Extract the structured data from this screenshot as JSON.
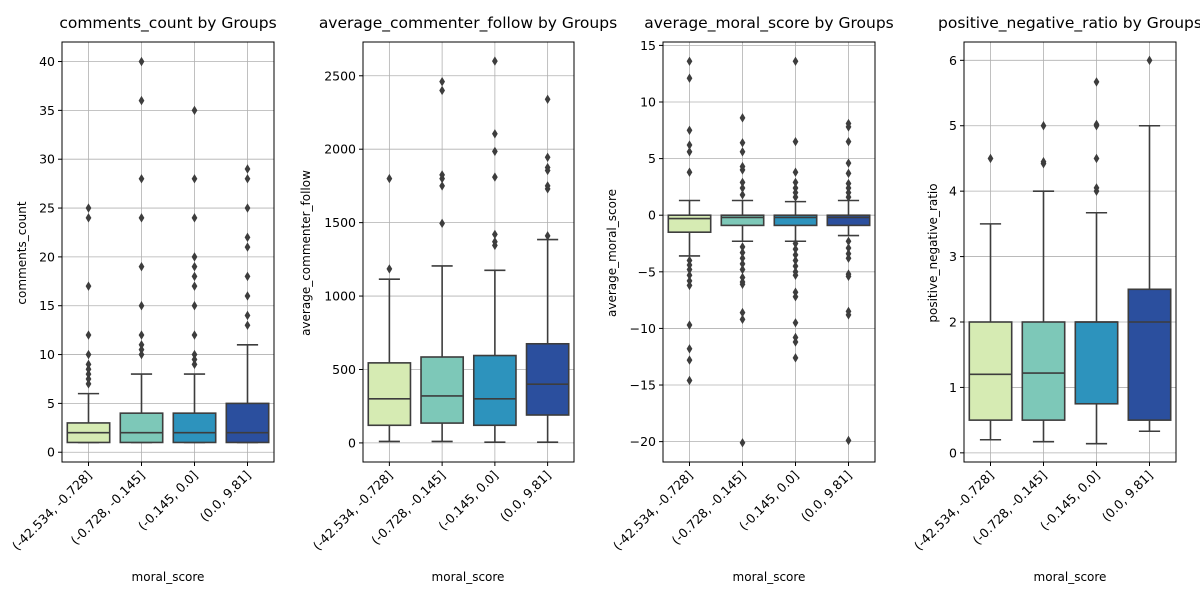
{
  "colors": {
    "groups": [
      "#d6ebb3",
      "#7dc8b8",
      "#2d93bd",
      "#2b4f9e"
    ],
    "line": "#3d3d3d",
    "grid": "#b0b0b0"
  },
  "chart_data": [
    {
      "type": "box",
      "title": "comments_count by Groups",
      "xlabel": "moral_score",
      "ylabel": "comments_count",
      "categories": [
        "(-42.534, -0.728]",
        "(-0.728, -0.145]",
        "(-0.145, 0.0]",
        "(0.0, 9.81]"
      ],
      "ylim": [
        -1,
        42
      ],
      "yticks": [
        0,
        5,
        10,
        15,
        20,
        25,
        30,
        35,
        40
      ],
      "ytick_labels": [
        "0",
        "5",
        "10",
        "15",
        "20",
        "25",
        "30",
        "35",
        "40"
      ],
      "grid": true,
      "boxes": [
        {
          "whisker_low": 1,
          "q1": 1,
          "median": 2,
          "q3": 3,
          "whisker_high": 6,
          "outliers": [
            7,
            7.5,
            8,
            8.5,
            9,
            10,
            12,
            17,
            24,
            25
          ]
        },
        {
          "whisker_low": 1,
          "q1": 1,
          "median": 2,
          "q3": 4,
          "whisker_high": 8,
          "outliers": [
            10,
            10.5,
            11,
            12,
            15,
            19,
            24,
            28,
            36,
            40
          ]
        },
        {
          "whisker_low": 1,
          "q1": 1,
          "median": 2,
          "q3": 4,
          "whisker_high": 8,
          "outliers": [
            9,
            9.5,
            10,
            12,
            15,
            17,
            18,
            19,
            20,
            24,
            28,
            35
          ]
        },
        {
          "whisker_low": 1,
          "q1": 1,
          "median": 2,
          "q3": 5,
          "whisker_high": 11,
          "outliers": [
            13,
            14,
            16,
            18,
            21,
            22,
            25,
            28,
            29
          ]
        }
      ]
    },
    {
      "type": "box",
      "title": "average_commenter_follow by Groups",
      "xlabel": "moral_score",
      "ylabel": "average_commenter_follow",
      "categories": [
        "(-42.534, -0.728]",
        "(-0.728, -0.145]",
        "(-0.145, 0.0]",
        "(0.0, 9.81]"
      ],
      "ylim": [
        -130,
        2730
      ],
      "yticks": [
        0,
        500,
        1000,
        1500,
        2000,
        2500
      ],
      "ytick_labels": [
        "0",
        "500",
        "1000",
        "1500",
        "2000",
        "2500"
      ],
      "grid": true,
      "boxes": [
        {
          "whisker_low": 10,
          "q1": 120,
          "median": 300,
          "q3": 545,
          "whisker_high": 1115,
          "outliers": [
            1185,
            1800
          ]
        },
        {
          "whisker_low": 10,
          "q1": 135,
          "median": 320,
          "q3": 585,
          "whisker_high": 1205,
          "outliers": [
            1495,
            1750,
            1800,
            1825,
            2400,
            2460
          ]
        },
        {
          "whisker_low": 5,
          "q1": 120,
          "median": 300,
          "q3": 595,
          "whisker_high": 1175,
          "outliers": [
            1345,
            1370,
            1420,
            1810,
            1985,
            2105,
            2600
          ]
        },
        {
          "whisker_low": 5,
          "q1": 190,
          "median": 400,
          "q3": 675,
          "whisker_high": 1385,
          "outliers": [
            1410,
            1730,
            1750,
            1855,
            1875,
            1945,
            2340
          ]
        }
      ]
    },
    {
      "type": "box",
      "title": "average_moral_score by Groups",
      "xlabel": "moral_score",
      "ylabel": "average_moral_score",
      "categories": [
        "(-42.534, -0.728]",
        "(-0.728, -0.145]",
        "(-0.145, 0.0]",
        "(0.0, 9.81]"
      ],
      "ylim": [
        -21.8,
        15.3
      ],
      "yticks": [
        -20,
        -15,
        -10,
        -5,
        0,
        5,
        10,
        15
      ],
      "ytick_labels": [
        "−20",
        "−15",
        "−10",
        "−5",
        "0",
        "5",
        "10",
        "15"
      ],
      "grid": true,
      "boxes": [
        {
          "whisker_low": -3.6,
          "q1": -1.5,
          "median": -0.3,
          "q3": 0,
          "whisker_high": 1.3,
          "outliers": [
            3.8,
            5.6,
            6.2,
            7.5,
            12.1,
            13.6,
            -4,
            -4.4,
            -4.8,
            -5.3,
            -5.8,
            -6.2,
            -9.7,
            -11.8,
            -12.8,
            -14.6
          ]
        },
        {
          "whisker_low": -2.3,
          "q1": -0.9,
          "median": -0.2,
          "q3": 0,
          "whisker_high": 1.3,
          "outliers": [
            1.8,
            2.4,
            2.9,
            4,
            4.3,
            5.6,
            6.4,
            8.6,
            -2.8,
            -3.3,
            -3.8,
            -4.3,
            -4.8,
            -5.5,
            -5.9,
            -6.1,
            -8.6,
            -9.2,
            -20.1
          ]
        },
        {
          "whisker_low": -2.3,
          "q1": -0.9,
          "median": -0.2,
          "q3": 0,
          "whisker_high": 1.2,
          "outliers": [
            1.6,
            2,
            2.4,
            2.9,
            3.8,
            6.5,
            13.6,
            -2.5,
            -3,
            -3.5,
            -4,
            -4.5,
            -5,
            -5.3,
            -6.8,
            -7.2,
            -9.5,
            -10.8,
            -11.2,
            -12.6
          ]
        },
        {
          "whisker_low": -1.8,
          "q1": -0.9,
          "median": -0.2,
          "q3": 0,
          "whisker_high": 1.3,
          "outliers": [
            1.6,
            2,
            2.4,
            2.8,
            3.7,
            4.6,
            6.5,
            7.8,
            8.1,
            -2.3,
            -2.9,
            -3.4,
            -3.8,
            -5.2,
            -5.4,
            -8.5,
            -8.8,
            -19.9
          ]
        }
      ]
    },
    {
      "type": "box",
      "title": "positive_negative_ratio by Groups",
      "xlabel": "moral_score",
      "ylabel": "positive_negative_ratio",
      "categories": [
        "(-42.534, -0.728]",
        "(-0.728, -0.145]",
        "(-0.145, 0.0]",
        "(0.0, 9.81]"
      ],
      "ylim": [
        -0.14,
        6.28
      ],
      "yticks": [
        0,
        1,
        2,
        3,
        4,
        5,
        6
      ],
      "ytick_labels": [
        "0",
        "1",
        "2",
        "3",
        "4",
        "5",
        "6"
      ],
      "grid": true,
      "boxes": [
        {
          "whisker_low": 0.2,
          "q1": 0.5,
          "median": 1.2,
          "q3": 2,
          "whisker_high": 3.5,
          "outliers": [
            4.5
          ]
        },
        {
          "whisker_low": 0.17,
          "q1": 0.5,
          "median": 1.22,
          "q3": 2,
          "whisker_high": 4,
          "outliers": [
            4.42,
            4.45,
            5
          ]
        },
        {
          "whisker_low": 0.14,
          "q1": 0.75,
          "median": 2,
          "q3": 2,
          "whisker_high": 3.67,
          "outliers": [
            4,
            4.05,
            4.5,
            5,
            5.02,
            5.67
          ]
        },
        {
          "whisker_low": 0.33,
          "q1": 0.5,
          "median": 2,
          "q3": 2.5,
          "whisker_high": 5,
          "outliers": [
            6
          ]
        }
      ]
    }
  ]
}
